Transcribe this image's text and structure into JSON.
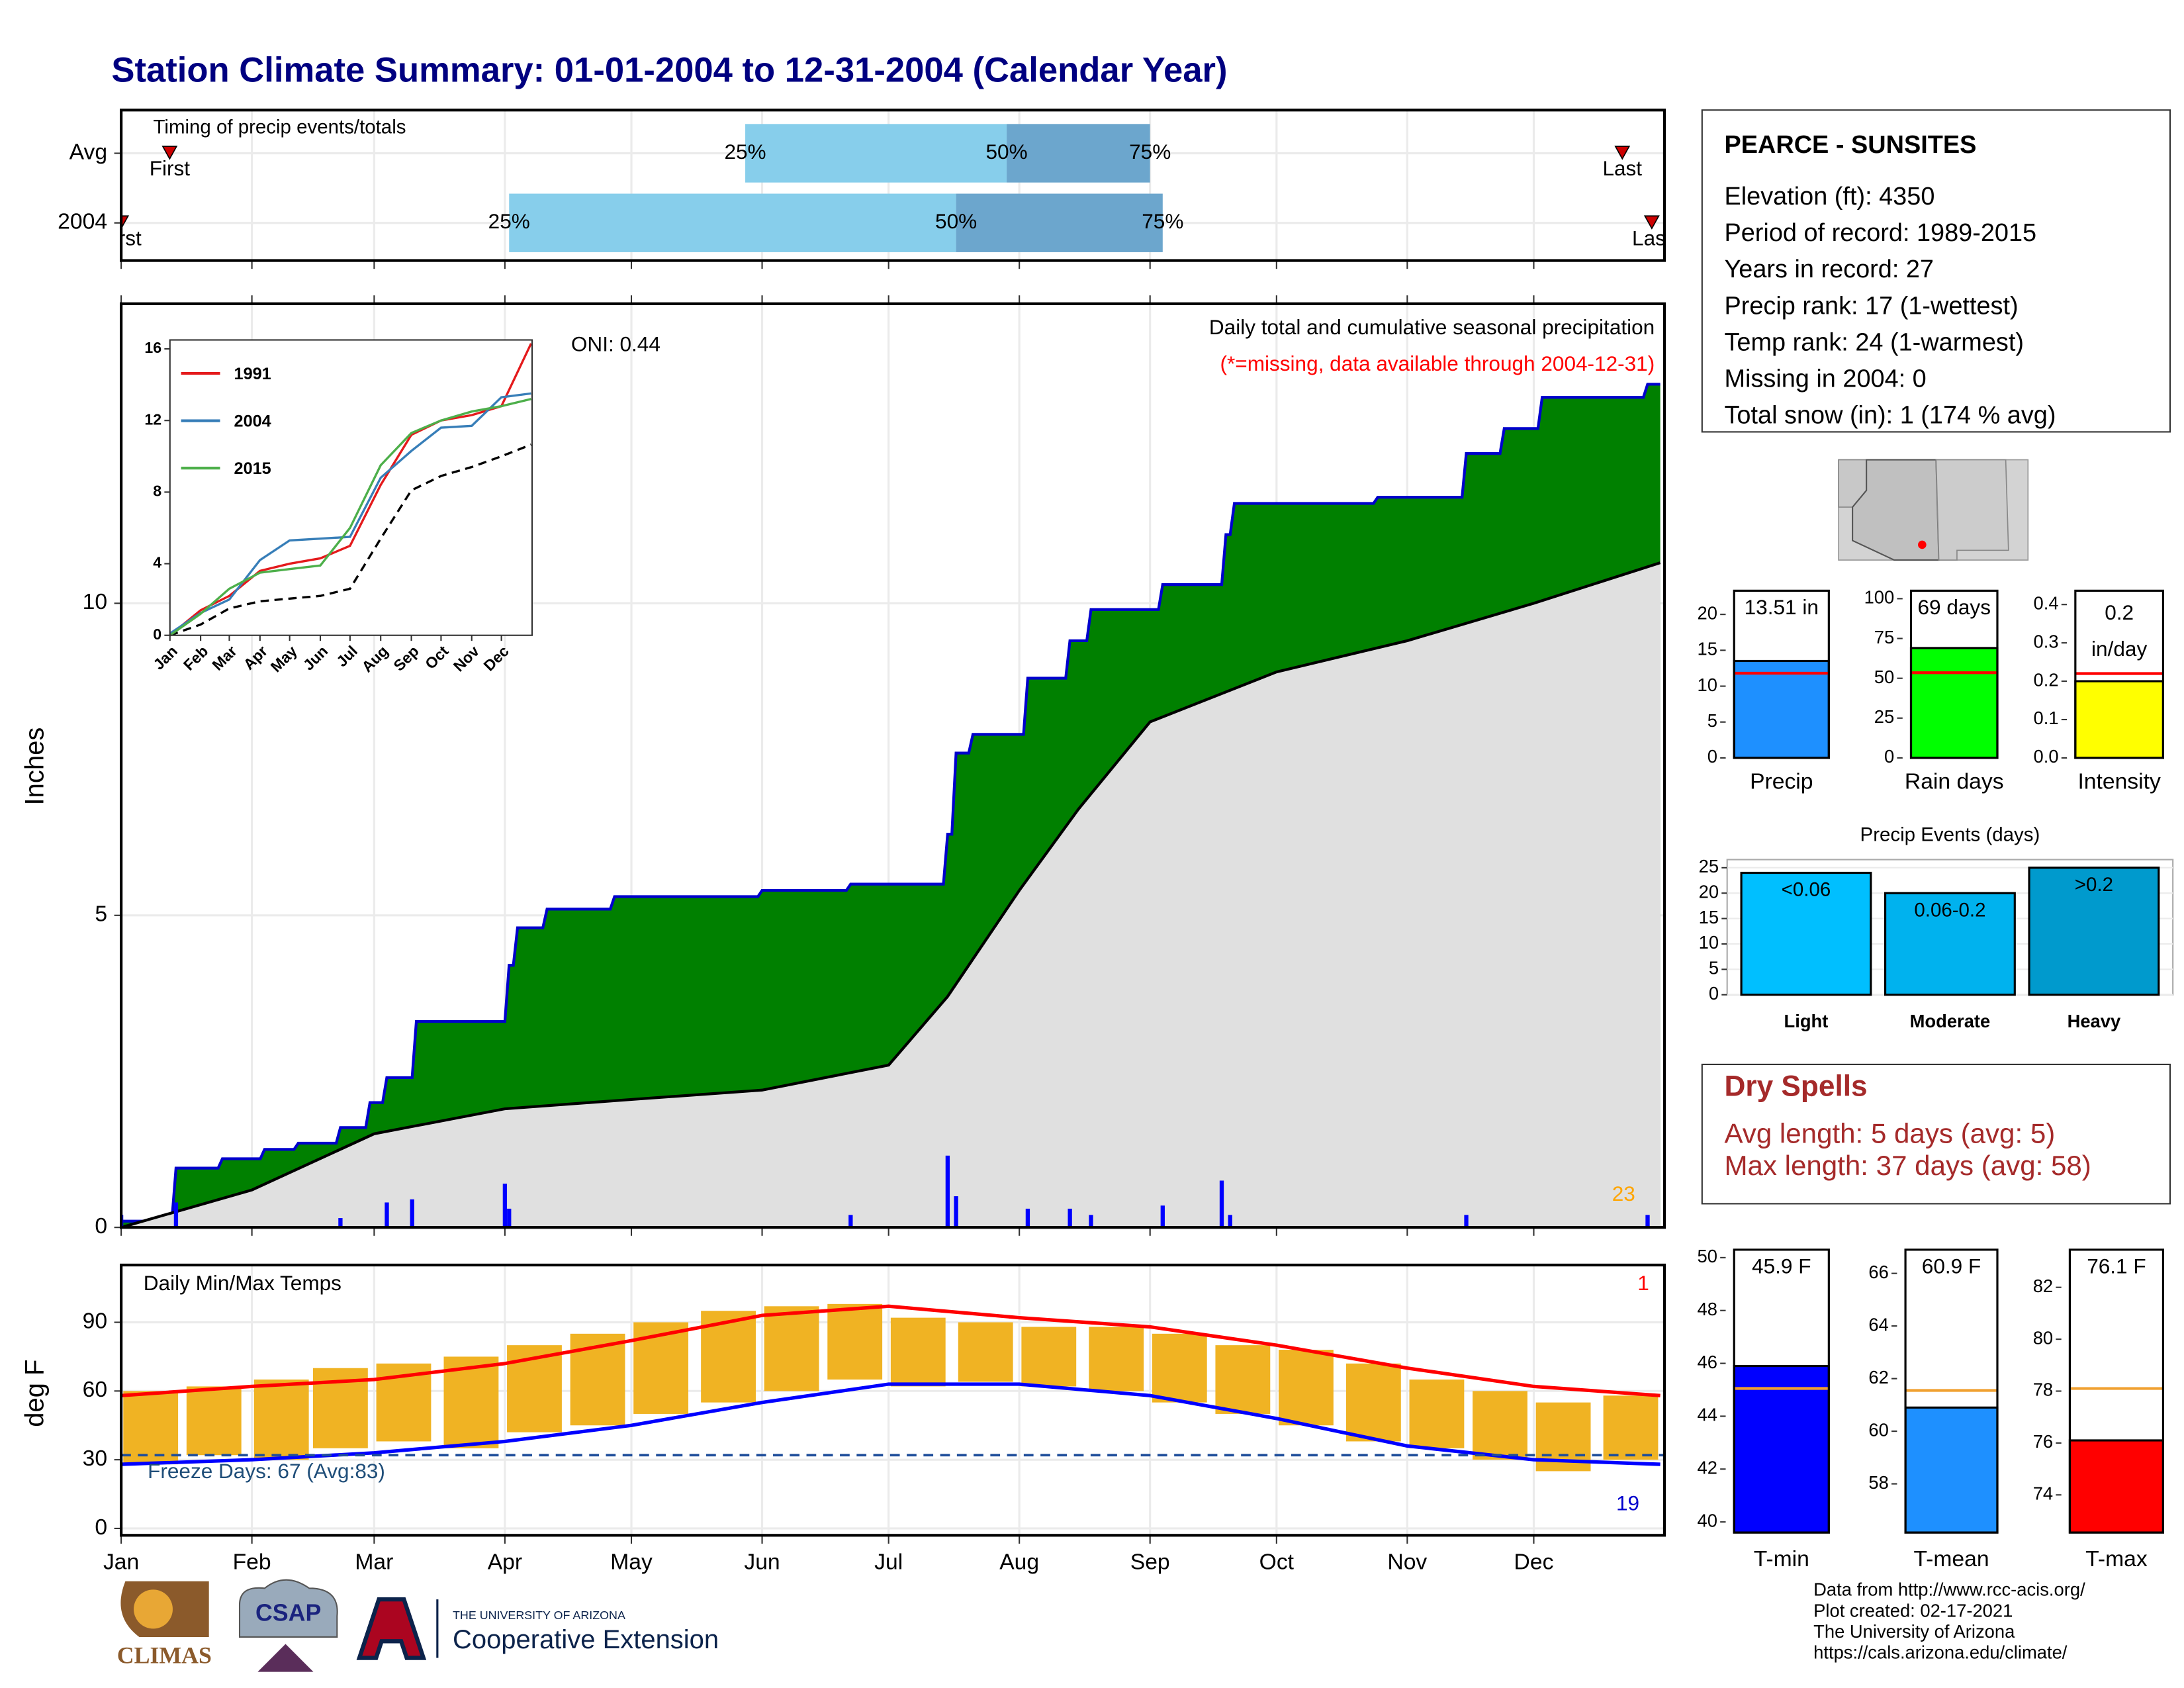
{
  "title": "Station Climate Summary: 01-01-2004 to 12-31-2004 (Calendar Year)",
  "station": {
    "name": "PEARCE - SUNSITES",
    "lines": [
      "Elevation (ft): 4350",
      "Period of record: 1989-2015",
      "Years in record: 27",
      "Precip rank: 17 (1-wettest)",
      "Temp rank: 24 (1-warmest)",
      "Missing in 2004: 0",
      "Total snow (in): 1 (174 % avg)"
    ]
  },
  "dry_spells": {
    "title": "Dry Spells",
    "lines": [
      "Avg length: 5 days (avg: 5)",
      "Max length: 37 days (avg: 58)"
    ]
  },
  "footer": {
    "lines": [
      "Data from http://www.rcc-acis.org/",
      "Plot created: 02-17-2021",
      "The University of Arizona",
      "https://cals.arizona.edu/climate/"
    ],
    "logos": [
      "CLIMAS",
      "CSAP",
      "THE UNIVERSITY OF ARIZONA",
      "Cooperative Extension"
    ]
  },
  "chart_data": [
    {
      "type": "timing",
      "title": "Timing of precip events/totals",
      "categories": [
        "Avg",
        "2004"
      ],
      "xlim": [
        1,
        367
      ],
      "colors": [
        "#87ceeb",
        "#6ca6cd"
      ],
      "series": [
        {
          "name": "First",
          "values": [
            12.5,
            1
          ]
        },
        {
          "name": "25%",
          "values": [
            149,
            93
          ]
        },
        {
          "name": "50%",
          "values": [
            211,
            199
          ]
        },
        {
          "name": "75%",
          "values": [
            245,
            248
          ]
        },
        {
          "name": "Last",
          "values": [
            357,
            364
          ]
        }
      ]
    },
    {
      "type": "area",
      "title": "Daily total and cumulative seasonal precipitation",
      "subtitle": "(*=missing, data available through 2004-12-31)",
      "annotation": "ONI: 0.44",
      "corner_label": "23",
      "ylabel": "Inches",
      "xlim": [
        1,
        367
      ],
      "ylim": [
        0,
        14.8
      ],
      "yticks": [
        0,
        5,
        10
      ],
      "grid": true,
      "cumulative": {
        "color": "#008000",
        "line_color": "#0000cd",
        "x": [
          1,
          13,
          14,
          24,
          25,
          34,
          35,
          42,
          43,
          52,
          53,
          59,
          60,
          63,
          64,
          70,
          71,
          92,
          93,
          94,
          95,
          101,
          102,
          117,
          118,
          152,
          153,
          173,
          174,
          196,
          197,
          198,
          199,
          202,
          203,
          215,
          216,
          225,
          226,
          230,
          231,
          247,
          248,
          262,
          263,
          264,
          265,
          298,
          299,
          319,
          320,
          328,
          329,
          337,
          338,
          362,
          363,
          366
        ],
        "values": [
          0.1,
          0.1,
          0.95,
          0.95,
          1.1,
          1.1,
          1.25,
          1.25,
          1.35,
          1.35,
          1.6,
          1.6,
          2.0,
          2.0,
          2.4,
          2.4,
          3.3,
          3.3,
          4.2,
          4.2,
          4.8,
          4.8,
          5.1,
          5.1,
          5.3,
          5.3,
          5.4,
          5.4,
          5.5,
          5.5,
          6.3,
          6.3,
          7.6,
          7.6,
          7.9,
          7.9,
          8.8,
          8.8,
          9.4,
          9.4,
          9.9,
          9.9,
          10.3,
          10.3,
          11.1,
          11.1,
          11.6,
          11.6,
          11.7,
          11.7,
          12.4,
          12.4,
          12.8,
          12.8,
          13.3,
          13.3,
          13.51,
          13.51
        ]
      },
      "average": {
        "color": "#e0e0e0",
        "x": [
          1,
          32,
          61,
          92,
          122,
          153,
          183,
          197,
          214,
          228,
          245,
          275,
          306,
          336,
          366
        ],
        "values": [
          0,
          0.6,
          1.5,
          1.9,
          2.05,
          2.2,
          2.6,
          3.7,
          5.4,
          6.7,
          8.1,
          8.9,
          9.4,
          10.0,
          10.65
        ]
      },
      "daily": {
        "color": "#0000ff",
        "x": [
          1,
          14,
          53,
          64,
          70,
          92,
          93,
          174,
          197,
          199,
          216,
          226,
          231,
          248,
          262,
          264,
          320,
          363
        ],
        "values": [
          0.2,
          0.4,
          0.15,
          0.4,
          0.45,
          0.7,
          0.3,
          0.2,
          1.15,
          0.5,
          0.3,
          0.3,
          0.2,
          0.35,
          0.75,
          0.2,
          0.2,
          0.2
        ]
      }
    },
    {
      "type": "line",
      "xlim": [
        1,
        367
      ],
      "ylim": [
        0,
        16.5
      ],
      "yticks": [
        0,
        4,
        8,
        12,
        16
      ],
      "xticks": [
        {
          "value": 1,
          "label": "Jan"
        },
        {
          "value": 32,
          "label": "Feb"
        },
        {
          "value": 61,
          "label": "Mar"
        },
        {
          "value": 92,
          "label": "Apr"
        },
        {
          "value": 122,
          "label": "May"
        },
        {
          "value": 153,
          "label": "Jun"
        },
        {
          "value": 183,
          "label": "Jul"
        },
        {
          "value": 214,
          "label": "Aug"
        },
        {
          "value": 245,
          "label": "Sep"
        },
        {
          "value": 275,
          "label": "Oct"
        },
        {
          "value": 306,
          "label": "Nov"
        },
        {
          "value": 336,
          "label": "Dec"
        }
      ],
      "x": [
        1,
        32,
        61,
        92,
        122,
        153,
        183,
        214,
        245,
        275,
        306,
        336,
        366
      ],
      "series": [
        {
          "name": "1991",
          "color": "#e41a1c",
          "values": [
            0,
            1.4,
            2.2,
            3.6,
            4.0,
            4.3,
            5.0,
            8.4,
            11.2,
            12.0,
            12.3,
            12.8,
            16.3
          ]
        },
        {
          "name": "2004",
          "color": "#377eb8",
          "values": [
            0.1,
            1.25,
            2.0,
            4.2,
            5.3,
            5.4,
            5.5,
            8.8,
            10.3,
            11.6,
            11.7,
            13.3,
            13.51
          ]
        },
        {
          "name": "2015",
          "color": "#4daf4a",
          "values": [
            0,
            1.2,
            2.6,
            3.5,
            3.7,
            3.9,
            6.0,
            9.5,
            11.3,
            12.0,
            12.5,
            12.8,
            13.2
          ]
        }
      ],
      "average": {
        "color": "#000000",
        "values": [
          0,
          0.6,
          1.5,
          1.9,
          2.05,
          2.2,
          2.6,
          5.4,
          8.1,
          8.9,
          9.4,
          10.0,
          10.65
        ]
      }
    },
    {
      "type": "range_bar",
      "title": "Daily Min/Max Temps",
      "ylabel": "deg F",
      "xlim": [
        1,
        367
      ],
      "ylim": [
        -3,
        115
      ],
      "yticks": [
        0,
        30,
        60,
        90
      ],
      "grid": true,
      "xticks": [
        {
          "value": 1,
          "label": "Jan"
        },
        {
          "value": 32,
          "label": "Feb"
        },
        {
          "value": 61,
          "label": "Mar"
        },
        {
          "value": 92,
          "label": "Apr"
        },
        {
          "value": 122,
          "label": "May"
        },
        {
          "value": 153,
          "label": "Jun"
        },
        {
          "value": 183,
          "label": "Jul"
        },
        {
          "value": 214,
          "label": "Aug"
        },
        {
          "value": 245,
          "label": "Sep"
        },
        {
          "value": 275,
          "label": "Oct"
        },
        {
          "value": 306,
          "label": "Nov"
        },
        {
          "value": 336,
          "label": "Dec"
        }
      ],
      "freeze_line": 32,
      "annotation": "Freeze Days: 67 (Avg:83)",
      "corner_label_high": "1",
      "corner_label_low": "19",
      "daily": {
        "color": "#f0b323",
        "x": [
          8,
          23,
          39,
          53,
          68,
          84,
          99,
          114,
          129,
          145,
          160,
          175,
          190,
          206,
          221,
          237,
          252,
          267,
          282,
          298,
          313,
          328,
          343,
          359
        ],
        "low": [
          28,
          32,
          30,
          35,
          38,
          35,
          42,
          45,
          50,
          55,
          60,
          65,
          62,
          64,
          62,
          60,
          55,
          50,
          45,
          38,
          35,
          30,
          25,
          30
        ],
        "high": [
          60,
          62,
          65,
          70,
          72,
          75,
          80,
          85,
          90,
          95,
          97,
          98,
          92,
          90,
          88,
          88,
          85,
          80,
          78,
          72,
          65,
          60,
          55,
          58
        ]
      },
      "avg_max": {
        "color": "#ff0000",
        "x": [
          1,
          32,
          61,
          92,
          122,
          153,
          183,
          214,
          245,
          275,
          306,
          336,
          366
        ],
        "values": [
          58,
          62,
          65,
          72,
          82,
          93,
          97,
          92,
          88,
          80,
          70,
          62,
          58
        ]
      },
      "avg_min": {
        "color": "#0000ff",
        "x": [
          1,
          32,
          61,
          92,
          122,
          153,
          183,
          214,
          245,
          275,
          306,
          336,
          366
        ],
        "values": [
          28,
          30,
          33,
          38,
          45,
          55,
          63,
          63,
          58,
          48,
          36,
          30,
          28
        ]
      }
    },
    {
      "type": "bar",
      "categories": [
        "Precip"
      ],
      "values": [
        13.51
      ],
      "value_labels": [
        "13.51 in"
      ],
      "average": 11.8,
      "avg_color": "#ff0000",
      "color": "#1e90ff",
      "ylim": [
        0,
        23.3
      ],
      "yticks": [
        0,
        5,
        10,
        15,
        20
      ]
    },
    {
      "type": "bar",
      "categories": [
        "Rain days"
      ],
      "values": [
        69
      ],
      "value_labels": [
        "69 days"
      ],
      "average": 53.5,
      "avg_color": "#ff0000",
      "color": "#00ff00",
      "ylim": [
        0,
        105
      ],
      "yticks": [
        0,
        25,
        50,
        75,
        100
      ]
    },
    {
      "type": "bar",
      "categories": [
        "Intensity"
      ],
      "values": [
        0.2
      ],
      "value_labels": [
        "0.2 in/day"
      ],
      "average": 0.22,
      "avg_color": "#ff0000",
      "color": "#ffff00",
      "ylim": [
        0,
        0.436
      ],
      "yticks": [
        {
          "value": 0,
          "label": "0.0"
        },
        0.1,
        0.2,
        0.3,
        0.4
      ]
    },
    {
      "type": "events",
      "title": "Precip Events (days)",
      "categories": [
        "Light",
        "Moderate",
        "Heavy"
      ],
      "values": [
        24,
        20,
        25
      ],
      "bar_text": [
        "<0.06",
        "0.06-0.2",
        ">0.2"
      ],
      "colors": [
        "#00bfff",
        "#00b2ee",
        "#009acd"
      ],
      "ylim": [
        0,
        26.6
      ],
      "yticks": [
        0,
        5,
        10,
        15,
        20,
        25
      ]
    },
    {
      "type": "bar",
      "categories": [
        "T-min"
      ],
      "values": [
        45.9
      ],
      "value_labels": [
        "45.9 F"
      ],
      "average": 45.05,
      "avg_color": "#f0a030",
      "color": "#0000ff",
      "ylim": [
        39.6,
        50.3
      ],
      "yticks": [
        40,
        42,
        44,
        46,
        48,
        50
      ]
    },
    {
      "type": "bar",
      "categories": [
        "T-mean"
      ],
      "values": [
        60.9
      ],
      "value_labels": [
        "60.9 F"
      ],
      "average": 61.55,
      "avg_color": "#f0a030",
      "color": "#1e90ff",
      "ylim": [
        56.15,
        66.9
      ],
      "yticks": [
        58,
        60,
        62,
        64,
        66
      ]
    },
    {
      "type": "bar",
      "categories": [
        "T-max"
      ],
      "values": [
        76.1
      ],
      "value_labels": [
        "76.1 F"
      ],
      "average": 78.1,
      "avg_color": "#f0a030",
      "color": "#ff0000",
      "ylim": [
        72.55,
        83.45
      ],
      "yticks": [
        74,
        76,
        78,
        80,
        82
      ]
    }
  ]
}
